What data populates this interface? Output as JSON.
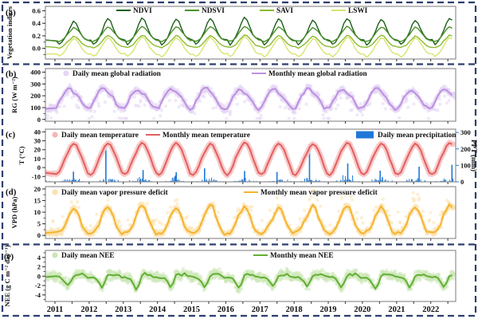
{
  "frame": {
    "border_color": "#2d3f6e",
    "spine_color": "#8f8f8f",
    "tick_color": "#333333",
    "background": "#ffffff"
  },
  "x_axis": {
    "year_labels": [
      "2011",
      "2012",
      "2013",
      "2014",
      "2015",
      "2016",
      "2017",
      "2018",
      "2019",
      "2020",
      "2021",
      "2022"
    ]
  },
  "chart_data": [
    {
      "id": "a",
      "type": "line",
      "panel_label": "(a)",
      "ylabel": "Vegetation indices",
      "ylim": [
        -0.17,
        0.67
      ],
      "yticks": [
        {
          "v": 0.0,
          "label": "0.0"
        },
        {
          "v": 0.2,
          "label": "0.2"
        },
        {
          "v": 0.4,
          "label": "0.4"
        },
        {
          "v": 0.6,
          "label": "0.6"
        }
      ],
      "minor_step": 0.1,
      "tick_label_color": "#111111",
      "legend": [
        {
          "label": "NDVI",
          "swatch": "line",
          "color": "#1b5e1b"
        },
        {
          "label": "NDSVI",
          "swatch": "line",
          "color": "#4b8f2b"
        },
        {
          "label": "SAVI",
          "swatch": "line",
          "color": "#8cba30"
        },
        {
          "label": "LSWI",
          "swatch": "line",
          "color": "#d9e46e"
        }
      ],
      "lines": [
        {
          "name": "NDVI",
          "color": "#1b5e1b",
          "width": 1.4,
          "baseline": 0.05,
          "jitter": 0.01,
          "monthly_pattern": [
            0.13,
            0.06,
            0.1,
            0.17,
            0.26,
            0.38,
            0.46,
            0.42,
            0.31,
            0.21,
            0.16,
            0.14
          ],
          "year_amp": [
            0.93,
            1.04,
            1.05,
            1.03,
            1.05,
            1.1,
            1.04,
            0.96,
            1.05,
            1.02,
            0.98,
            1.06
          ]
        },
        {
          "name": "NDSVI",
          "color": "#4b8f2b",
          "width": 1.4,
          "baseline": 0.1,
          "jitter": 0.008,
          "monthly_pattern": [
            0.12,
            0.11,
            0.13,
            0.17,
            0.23,
            0.29,
            0.34,
            0.32,
            0.27,
            0.21,
            0.16,
            0.13
          ],
          "year_amp": [
            0.95,
            1.0,
            1.04,
            1.0,
            1.02,
            1.06,
            1.0,
            0.96,
            1.03,
            1.0,
            0.97,
            1.04
          ]
        },
        {
          "name": "SAVI",
          "color": "#8cba30",
          "width": 1.4,
          "baseline": 0.0,
          "jitter": 0.008,
          "monthly_pattern": [
            0.02,
            0.01,
            0.03,
            0.06,
            0.11,
            0.16,
            0.2,
            0.19,
            0.14,
            0.09,
            0.05,
            0.03
          ],
          "year_amp": [
            0.95,
            1.0,
            1.05,
            1.0,
            1.0,
            1.05,
            1.0,
            0.95,
            1.02,
            1.0,
            0.96,
            1.03
          ]
        },
        {
          "name": "LSWI",
          "color": "#d9e46e",
          "width": 1.4,
          "baseline": -0.13,
          "jitter": 0.01,
          "monthly_pattern": [
            -0.09,
            -0.13,
            -0.1,
            -0.04,
            0.04,
            0.11,
            0.17,
            0.15,
            0.08,
            0.0,
            -0.06,
            -0.09
          ],
          "year_amp": [
            0.95,
            1.0,
            1.05,
            1.0,
            1.0,
            1.05,
            1.0,
            0.95,
            1.02,
            1.0,
            0.96,
            1.03
          ]
        }
      ]
    },
    {
      "id": "b",
      "type": "scatter+line",
      "panel_label": "(b)",
      "ylabel": "RG (W m⁻²)",
      "ylim": [
        -15,
        430
      ],
      "yticks": [
        {
          "v": 0,
          "label": "0"
        },
        {
          "v": 100,
          "label": "100"
        },
        {
          "v": 200,
          "label": "200"
        },
        {
          "v": 300,
          "label": "300"
        },
        {
          "v": 400,
          "label": "400"
        }
      ],
      "minor_step": 50,
      "tick_label_color": "#111111",
      "legend": [
        {
          "label": "Daily mean global radiation",
          "swatch": "circle",
          "color": "#e4d6f4"
        },
        {
          "label": "Monthly mean global radiation",
          "swatch": "line",
          "color": "#bd90e0"
        }
      ],
      "lines": [
        {
          "name": "Monthly mean global radiation",
          "color": "#bd90e0",
          "width": 2,
          "baseline": 85,
          "jitter": 12,
          "monthly_pattern": [
            100,
            145,
            190,
            230,
            258,
            252,
            228,
            208,
            178,
            138,
            102,
            90
          ],
          "year_amp": [
            1.0,
            1.03,
            0.97,
            1.01,
            1.04,
            0.98,
            1.0,
            1.02,
            0.99,
            1.01,
            0.9,
            1.03
          ]
        }
      ],
      "daily": {
        "name": "Daily mean global radiation",
        "color": "#e4d6f4",
        "r": 2.1,
        "opacity": 0.55,
        "sigma": 46,
        "clamp": [
          8,
          418
        ],
        "outlier_p": 0.05,
        "outlier_lo": -130,
        "outlier_hi": -40
      }
    },
    {
      "id": "c",
      "type": "scatter+line+bars",
      "panel_label": "(c)",
      "ylabel": "T (°C)",
      "ylim": [
        -16,
        43
      ],
      "yticks": [
        {
          "v": -10,
          "label": "-10"
        },
        {
          "v": 0,
          "label": "0"
        },
        {
          "v": 10,
          "label": "10"
        },
        {
          "v": 20,
          "label": "20"
        },
        {
          "v": 30,
          "label": "30"
        },
        {
          "v": 40,
          "label": "40"
        }
      ],
      "minor_step": 0,
      "tick_label_color": "#e02020",
      "legend": [
        {
          "label": "Daily mean temperature",
          "swatch": "circle",
          "color": "#f4b6b6"
        },
        {
          "label": "Monthly mean temperature",
          "swatch": "line",
          "color": "#e45f5f"
        },
        {
          "label": "Daily mean precipitation",
          "swatch": "box",
          "color": "#1f78d8"
        }
      ],
      "lines": [
        {
          "name": "Monthly mean temperature",
          "color": "#e45f5f",
          "width": 2,
          "baseline": -8,
          "jitter": 0.9,
          "band_color": "#f7c6c6",
          "band_width": 7,
          "monthly_pattern": [
            -8,
            -5,
            2,
            10,
            17,
            23,
            27,
            25,
            19,
            11,
            2,
            -6
          ],
          "year_amp": [
            0.99,
            1.02,
            1.0,
            1.01,
            0.98,
            1.03,
            1.0,
            0.99,
            1.02,
            1.0,
            0.98,
            1.01
          ]
        }
      ],
      "daily": {
        "name": "Daily mean temperature",
        "color": "#f6bcbc",
        "r": 2.3,
        "opacity": 0.4,
        "sigma": 3.2,
        "clamp": [
          -14.5,
          32
        ],
        "outlier_p": 0,
        "outlier_lo": 0,
        "outlier_hi": 0
      },
      "bars": {
        "name": "Daily mean precipitation",
        "color": "#1f78d8",
        "month_prob": [
          0.06,
          0.06,
          0.12,
          0.2,
          0.3,
          0.34,
          0.36,
          0.34,
          0.26,
          0.16,
          0.1,
          0.06
        ],
        "month_scale": [
          1.5,
          1.5,
          2.5,
          4,
          6,
          7,
          8,
          7,
          5,
          3,
          2,
          1.5
        ],
        "background_max": 55,
        "events": [
          [
            2011.54,
            62
          ],
          [
            2012.49,
            198
          ],
          [
            2013.58,
            72
          ],
          [
            2014.55,
            58
          ],
          [
            2015.38,
            82
          ],
          [
            2016.55,
            66
          ],
          [
            2017.5,
            60
          ],
          [
            2018.45,
            232
          ],
          [
            2019.57,
            112
          ],
          [
            2020.52,
            68
          ],
          [
            2021.66,
            92
          ],
          [
            2022.62,
            104
          ]
        ]
      },
      "right_axis": {
        "label": "PPT (mm)",
        "lim": [
          0,
          320
        ],
        "ticks": [
          {
            "v": 0,
            "label": "0"
          },
          {
            "v": 100,
            "label": "100"
          },
          {
            "v": 200,
            "label": "200"
          },
          {
            "v": 300,
            "label": "300"
          }
        ],
        "color": "#2f7fd6"
      }
    },
    {
      "id": "d",
      "type": "scatter+line",
      "panel_label": "(d)",
      "ylabel": "VPD (hPa)",
      "ylim": [
        -1.3,
        21
      ],
      "yticks": [
        {
          "v": 0,
          "label": "0"
        },
        {
          "v": 5,
          "label": "5"
        },
        {
          "v": 10,
          "label": "10"
        },
        {
          "v": 15,
          "label": "15"
        },
        {
          "v": 20,
          "label": "20"
        }
      ],
      "minor_step": 2.5,
      "tick_label_color": "#111111",
      "legend": [
        {
          "label": "Daily mean vapor pressure deficit",
          "swatch": "circle",
          "color": "#fbe2ad"
        },
        {
          "label": "Monthly mean vapor pressure deficit",
          "swatch": "line",
          "color": "#f6b32e"
        }
      ],
      "lines": [
        {
          "name": "Monthly mean vapor pressure deficit",
          "color": "#f6b32e",
          "width": 2,
          "baseline": 0.8,
          "jitter": 0.8,
          "monthly_pattern": [
            0.9,
            1.4,
            2.8,
            5.2,
            8.2,
            10.8,
            12.4,
            11.6,
            8.2,
            4.6,
            2.0,
            1.0
          ],
          "year_amp": [
            0.92,
            1.0,
            1.04,
            0.98,
            1.05,
            1.0,
            0.95,
            1.02,
            1.06,
            0.96,
            1.0,
            1.03
          ]
        }
      ],
      "daily": {
        "name": "Daily mean vapor pressure deficit",
        "color": "#fbe2ad",
        "r": 2.1,
        "opacity": 0.55,
        "sigma": 2.1,
        "clamp": [
          0.05,
          19.5
        ],
        "outlier_p": 0.05,
        "outlier_lo": 2.5,
        "outlier_hi": 7
      }
    },
    {
      "id": "e",
      "type": "scatter+line",
      "panel_label": "(e)",
      "ylabel": "NEE (g C m⁻² day⁻¹)",
      "ylim": [
        -5.4,
        5.5
      ],
      "yticks": [
        {
          "v": -4,
          "label": "-4"
        },
        {
          "v": -2,
          "label": "-2"
        },
        {
          "v": 0,
          "label": "0"
        },
        {
          "v": 2,
          "label": "2"
        },
        {
          "v": 4,
          "label": "4"
        }
      ],
      "minor_step": 1,
      "tick_label_color": "#111111",
      "legend": [
        {
          "label": "Daily mean NEE",
          "swatch": "circle",
          "color": "#cbe7b6"
        },
        {
          "label": "Monthly mean NEE",
          "swatch": "line",
          "color": "#63ae35"
        }
      ],
      "lines": [
        {
          "name": "Monthly mean NEE",
          "color": "#63ae35",
          "width": 2,
          "baseline": 0,
          "jitter": 0.25,
          "monthly_pattern": [
            -0.2,
            -0.3,
            -0.5,
            -1.3,
            -2.3,
            -1.4,
            0.1,
            0.4,
            0.3,
            0.4,
            0.0,
            -0.2
          ],
          "year_amp": [
            0.92,
            1.0,
            1.35,
            1.02,
            0.95,
            1.05,
            0.92,
            1.0,
            1.12,
            1.2,
            1.05,
            0.95
          ]
        }
      ],
      "daily": {
        "name": "Daily mean NEE",
        "color": "#cbe7b6",
        "r": 2.2,
        "opacity": 0.5,
        "sigma": 1.45,
        "clamp": [
          -5.2,
          5.3
        ],
        "outlier_p": 0,
        "outlier_lo": 0,
        "outlier_hi": 0
      }
    }
  ]
}
